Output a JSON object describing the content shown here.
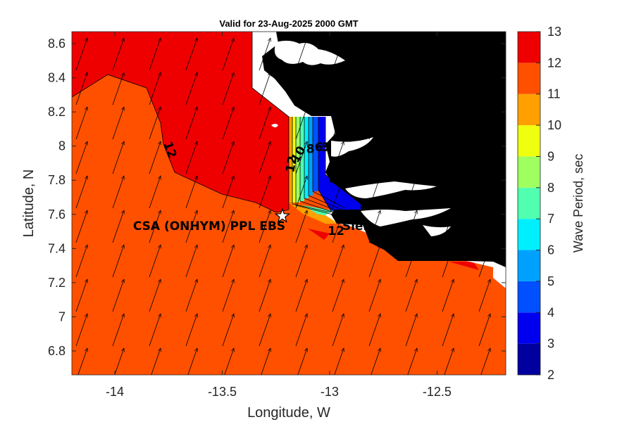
{
  "chart_data": {
    "type": "heatmap",
    "title": "Valid for 23-Aug-2025 2000 GMT",
    "xlabel": "Longitude, W",
    "ylabel": "Latitude, N",
    "xlim": [
      -14.2,
      -12.18
    ],
    "ylim": [
      6.66,
      8.67
    ],
    "xticks": [
      -14,
      -13.5,
      -13,
      -12.5
    ],
    "xtick_labels": [
      "-14",
      "-13.5",
      "-13",
      "-12.5"
    ],
    "yticks": [
      6.8,
      7,
      7.2,
      7.4,
      7.6,
      7.8,
      8,
      8.2,
      8.4,
      8.6
    ],
    "ytick_labels": [
      "6.8",
      "7",
      "7.2",
      "7.4",
      "7.6",
      "7.8",
      "8",
      "8.2",
      "8.4",
      "8.6"
    ],
    "colorbar": {
      "label": "Wave Period, sec",
      "min": 2,
      "max": 13,
      "ticks": [
        2,
        3,
        4,
        5,
        6,
        7,
        8,
        9,
        10,
        11,
        12,
        13
      ],
      "tick_labels": [
        "2",
        "3",
        "4",
        "5",
        "6",
        "7",
        "8",
        "9",
        "10",
        "11",
        "12",
        "13"
      ],
      "colors": [
        "#00009f",
        "#0000ef",
        "#0050ff",
        "#00a0ff",
        "#00efff",
        "#50ffb0",
        "#a0ff60",
        "#efff10",
        "#ffa000",
        "#ff5000",
        "#ef0000"
      ]
    },
    "contour_labels": [
      {
        "text": "12",
        "lon": -13.76,
        "lat": 7.97,
        "rotation": 70
      },
      {
        "text": "12",
        "lon": -13.16,
        "lat": 7.89,
        "rotation": -80
      },
      {
        "text": "10",
        "lon": -13.13,
        "lat": 7.94,
        "rotation": -60
      },
      {
        "text": "8",
        "lon": -13.09,
        "lat": 7.96,
        "rotation": 0
      },
      {
        "text": "6",
        "lon": -13.05,
        "lat": 7.97,
        "rotation": 0
      },
      {
        "text": "5",
        "lon": -13.02,
        "lat": 7.97,
        "rotation": 0
      },
      {
        "text": "3",
        "lon": -13.0,
        "lat": 7.8,
        "rotation": 80
      },
      {
        "text": "12",
        "lon": -12.97,
        "lat": 7.48,
        "rotation": 0
      }
    ],
    "site": {
      "name": "CSA (ONHYM) PPL EBS",
      "lon": -13.22,
      "lat": 7.59
    },
    "partial_label": "Sier",
    "arrow_direction": "north-northeast"
  }
}
